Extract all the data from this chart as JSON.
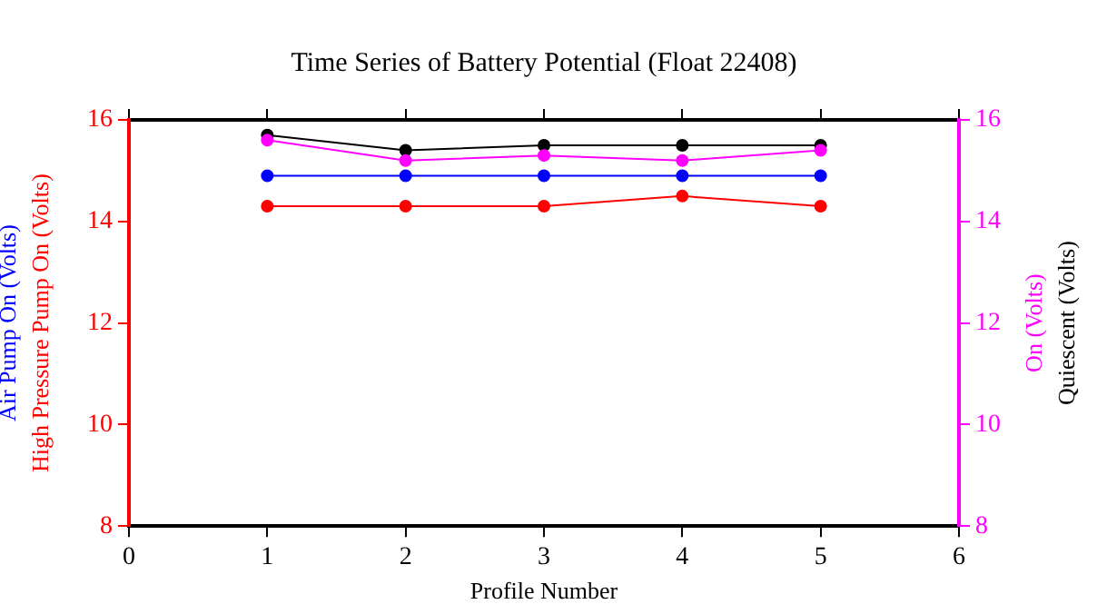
{
  "chart_data": {
    "type": "line",
    "title": "Time Series of Battery Potential (Float 22408)",
    "xlabel": "Profile Number",
    "x": [
      1,
      2,
      3,
      4,
      5
    ],
    "xlim": [
      0,
      6
    ],
    "xticks": [
      0,
      1,
      2,
      3,
      4,
      5,
      6
    ],
    "ylim": [
      8,
      16
    ],
    "yticks": [
      8,
      10,
      12,
      14,
      16
    ],
    "y2lim": [
      8,
      16
    ],
    "y2ticks": [
      8,
      10,
      12,
      14,
      16
    ],
    "marker": "circle",
    "line_style": "solid",
    "grid": false,
    "legend": "right",
    "series": [
      {
        "name": "Air Pump On (Volts)",
        "color": "#0000ff",
        "axis": "y",
        "values": [
          14.9,
          14.9,
          14.9,
          14.9,
          14.9
        ]
      },
      {
        "name": "High Pressure Pump On (Volts)",
        "color": "#ff0000",
        "axis": "y",
        "values": [
          14.3,
          14.3,
          14.3,
          14.5,
          14.3
        ]
      },
      {
        "name": "On (Volts)",
        "color": "#ff00ff",
        "axis": "y2",
        "values": [
          15.6,
          15.2,
          15.3,
          15.2,
          15.4
        ]
      },
      {
        "name": "Quiescent (Volts)",
        "color": "#000000",
        "axis": "y2",
        "values": [
          15.7,
          15.4,
          15.5,
          15.5,
          15.5
        ]
      }
    ]
  }
}
